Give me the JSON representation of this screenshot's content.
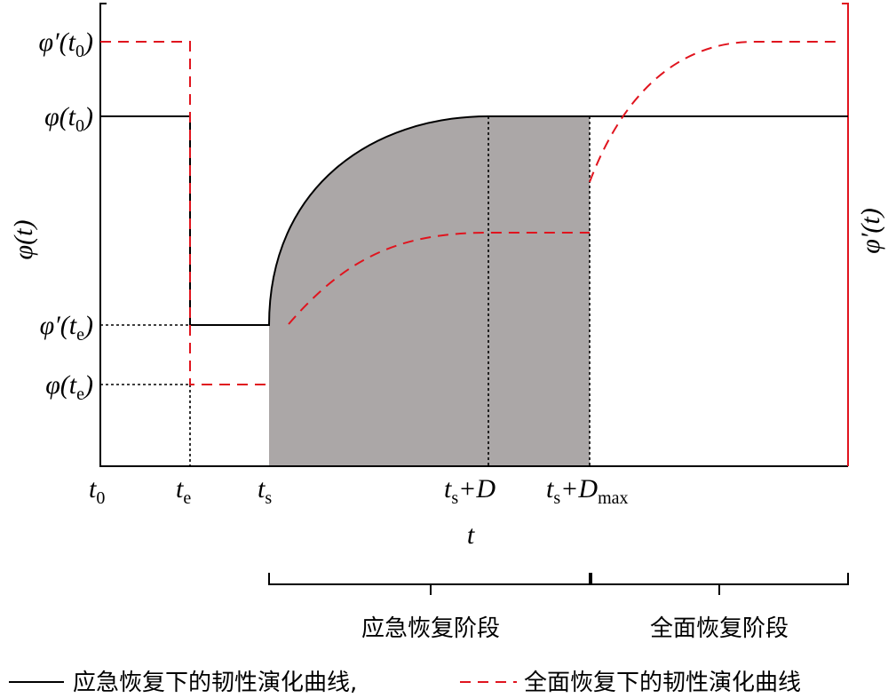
{
  "y_labels": [
    {
      "parts": [
        "φ′(t",
        "0",
        ")"
      ]
    },
    {
      "parts": [
        "φ(t",
        "0",
        ")"
      ]
    },
    {
      "parts": [
        "φ′(t",
        "e",
        ")"
      ]
    },
    {
      "parts": [
        "φ(t",
        "e",
        ")"
      ]
    }
  ],
  "x_labels": [
    {
      "parts": [
        "t",
        "0"
      ]
    },
    {
      "parts": [
        "t",
        "e"
      ]
    },
    {
      "parts": [
        "t",
        "s"
      ]
    },
    {
      "parts": [
        "t",
        "s",
        "+D"
      ]
    },
    {
      "parts": [
        "t",
        "s",
        "+D",
        "max"
      ]
    }
  ],
  "x_axis_title": "t",
  "y_axis_title": "φ(t)",
  "y2_axis_title": "φ′(t)",
  "phases": [
    "应急恢复阶段",
    "全面恢复阶段"
  ],
  "legend": [
    "应急恢复下的韧性演化曲线,",
    "全面恢复下的韧性演化曲线"
  ]
}
